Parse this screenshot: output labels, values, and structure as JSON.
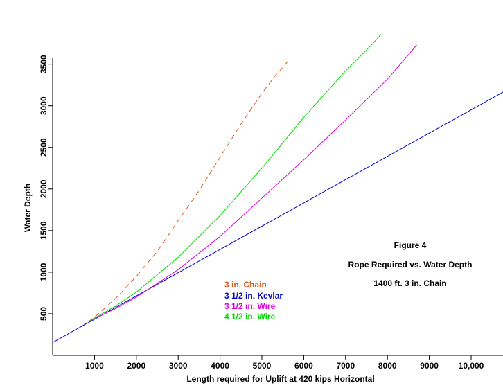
{
  "chart_data": {
    "type": "line",
    "xlabel": "Length required for Uplift at 420 kips Horizontal",
    "ylabel": "Water Depth",
    "xlim": [
      0,
      10800
    ],
    "ylim": [
      0,
      3500
    ],
    "x_ticks": [
      1000,
      2000,
      3000,
      4000,
      5000,
      6000,
      7000,
      8000,
      9000,
      10000
    ],
    "x_tick_labels": [
      "1000",
      "2000",
      "3000",
      "4000",
      "5000",
      "6000",
      "7000",
      "8000",
      "9000",
      "10,000"
    ],
    "y_ticks": [
      500,
      1000,
      1500,
      2000,
      2500,
      3000,
      3500
    ],
    "y_tick_labels": [
      "500",
      "1000",
      "1500",
      "2000",
      "2500",
      "3000",
      "3500"
    ],
    "annotations": [
      {
        "text": "Figure 4"
      },
      {
        "text": "Rope Required vs. Water Depth"
      },
      {
        "text": "1400 ft.  3 in. Chain"
      }
    ],
    "legend_placement": "center",
    "series": [
      {
        "name": "3 in. Chain",
        "color": "#e05a1e",
        "dash": "dashed",
        "x": [
          700,
          1000,
          1500,
          2000,
          2500,
          3000,
          3500,
          4000,
          4500,
          5000,
          5300,
          5650
        ],
        "y": [
          350,
          460,
          680,
          950,
          1250,
          1620,
          1980,
          2380,
          2780,
          3150,
          3350,
          3550
        ]
      },
      {
        "name": "3 1/2 in. Kevlar",
        "color": "#0000cc",
        "dash": "solid",
        "x": [
          0,
          10800
        ],
        "y": [
          155,
          3175
        ]
      },
      {
        "name": "3 1/2 in. Wire",
        "color": "#e000e0",
        "dash": "solid",
        "x": [
          900,
          1500,
          2000,
          3000,
          4000,
          5000,
          6000,
          7000,
          8000,
          8700
        ],
        "y": [
          420,
          560,
          700,
          1030,
          1430,
          1890,
          2350,
          2830,
          3320,
          3730
        ]
      },
      {
        "name": "4 1/2 in. Wire",
        "color": "#00dd00",
        "dash": "solid",
        "x": [
          900,
          1500,
          2000,
          3000,
          4000,
          5000,
          6000,
          7000,
          7600,
          7850
        ],
        "y": [
          420,
          590,
          760,
          1180,
          1680,
          2250,
          2860,
          3420,
          3720,
          3860
        ]
      }
    ]
  }
}
